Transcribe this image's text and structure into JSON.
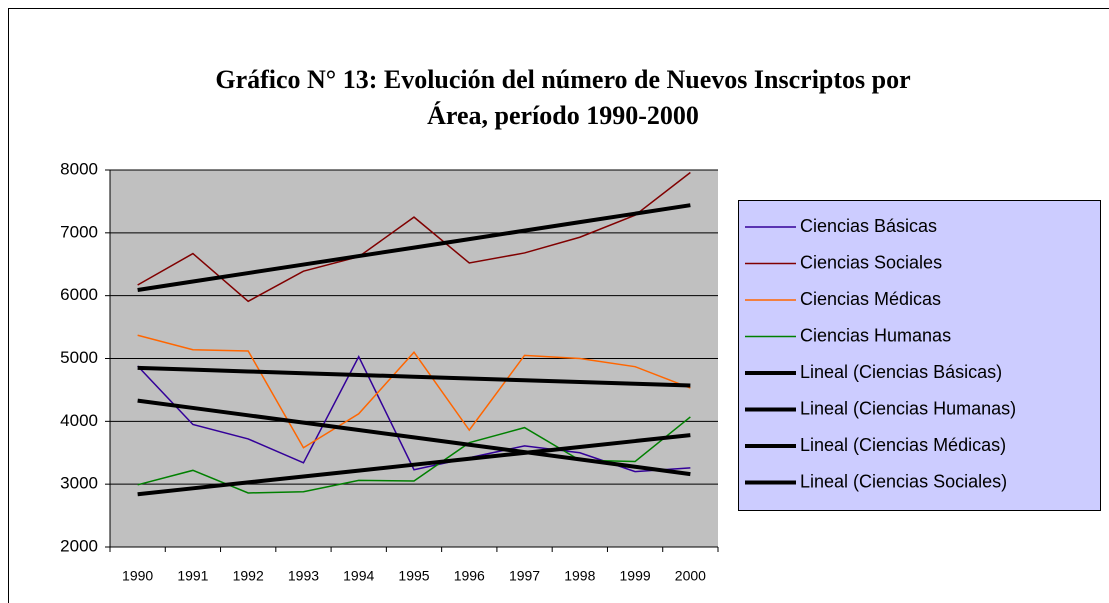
{
  "chart_data": {
    "type": "line",
    "title": [
      "Gráfico N° 13: Evolución del número de Nuevos Inscriptos por",
      "Área, período 1990-2000"
    ],
    "categories": [
      "1990",
      "1991",
      "1992",
      "1993",
      "1994",
      "1995",
      "1996",
      "1997",
      "1998",
      "1999",
      "2000"
    ],
    "ylim": [
      2000,
      8000
    ],
    "yticks": [
      2000,
      3000,
      4000,
      5000,
      6000,
      7000,
      8000
    ],
    "grid": true,
    "legend": "right",
    "series": [
      {
        "name": "Ciencias Básicas",
        "color": "#330099",
        "width": 1.5,
        "values": [
          4880,
          3950,
          3720,
          3340,
          5030,
          3230,
          3420,
          3610,
          3500,
          3200,
          3260
        ]
      },
      {
        "name": "Ciencias Sociales",
        "color": "#800000",
        "width": 1.5,
        "values": [
          6170,
          6670,
          5910,
          6390,
          6620,
          7250,
          6520,
          6680,
          6930,
          7280,
          7960
        ]
      },
      {
        "name": "Ciencias Médicas",
        "color": "#ff6600",
        "width": 1.5,
        "values": [
          5370,
          5140,
          5120,
          3580,
          4120,
          5100,
          3860,
          5050,
          5000,
          4870,
          4530
        ]
      },
      {
        "name": "Ciencias  Humanas",
        "color": "#008000",
        "width": 1.5,
        "values": [
          2990,
          3220,
          2860,
          2880,
          3060,
          3050,
          3660,
          3900,
          3380,
          3360,
          4070
        ]
      },
      {
        "name": "Lineal (Ciencias Básicas)",
        "color": "#000000",
        "width": 4,
        "values": [
          4330,
          4213,
          4096,
          3979,
          3862,
          3745,
          3628,
          3511,
          3394,
          3277,
          3160
        ]
      },
      {
        "name": "Lineal (Ciencias Humanas)",
        "color": "#000000",
        "width": 4,
        "values": [
          2840,
          2934,
          3028,
          3122,
          3216,
          3310,
          3404,
          3498,
          3592,
          3686,
          3780
        ]
      },
      {
        "name": "Lineal (Ciencias Médicas)",
        "color": "#000000",
        "width": 4,
        "values": [
          4850,
          4822,
          4794,
          4766,
          4738,
          4710,
          4682,
          4654,
          4626,
          4598,
          4570
        ]
      },
      {
        "name": "Lineal (Ciencias Sociales)",
        "color": "#000000",
        "width": 4,
        "values": [
          6090,
          6225,
          6360,
          6495,
          6630,
          6765,
          6900,
          7035,
          7170,
          7305,
          7440
        ]
      }
    ]
  }
}
